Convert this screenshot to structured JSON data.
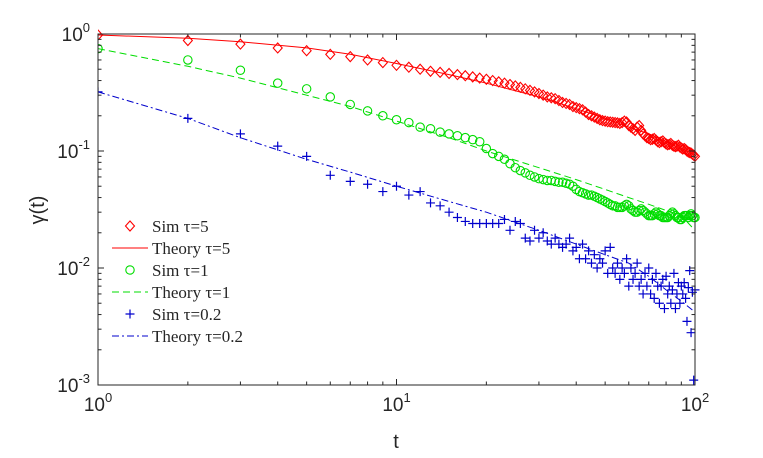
{
  "chart_data": {
    "type": "scatter",
    "xscale": "log",
    "yscale": "log",
    "xlim": [
      1,
      100
    ],
    "ylim": [
      0.001,
      1
    ],
    "xlabel": "t",
    "ylabel": "γ(t)",
    "grid": false,
    "legend_position": "bottom-left",
    "x_ticks": [
      {
        "base": "10",
        "exp": "0",
        "value": 1
      },
      {
        "base": "10",
        "exp": "1",
        "value": 10
      },
      {
        "base": "10",
        "exp": "2",
        "value": 100
      }
    ],
    "y_ticks": [
      {
        "base": "10",
        "exp": "-3",
        "value": 0.001
      },
      {
        "base": "10",
        "exp": "-2",
        "value": 0.01
      },
      {
        "base": "10",
        "exp": "-1",
        "value": 0.1
      },
      {
        "base": "10",
        "exp": "0",
        "value": 1
      }
    ],
    "legend": [
      "Sim τ=5",
      "Theory τ=5",
      "Sim τ=1",
      "Theory τ=1",
      "Sim τ=0.2",
      "Theory τ=0.2"
    ],
    "series": [
      {
        "name": "Sim τ=5",
        "kind": "markers",
        "marker": "diamond",
        "color": "#ff0000",
        "x": [
          1,
          2,
          3,
          4,
          5,
          6,
          7,
          8,
          9,
          10,
          11,
          12,
          13,
          14,
          15,
          16,
          17,
          18,
          19,
          20,
          21,
          22,
          23,
          24,
          25,
          26,
          27,
          28,
          29,
          30,
          31,
          32,
          33,
          34,
          35,
          36,
          37,
          38,
          39,
          40,
          41,
          42,
          43,
          44,
          45,
          46,
          47,
          48,
          49,
          50,
          51,
          52,
          53,
          54,
          55,
          56,
          57,
          58,
          59,
          60,
          61,
          62,
          63,
          64,
          65,
          66,
          67,
          68,
          69,
          70,
          71,
          72,
          73,
          74,
          75,
          76,
          77,
          78,
          79,
          80,
          81,
          82,
          83,
          84,
          85,
          86,
          87,
          88,
          89,
          90,
          91,
          92,
          93,
          94,
          95,
          96,
          97,
          98,
          99,
          100
        ],
        "y": [
          0.98,
          0.88,
          0.82,
          0.76,
          0.72,
          0.67,
          0.64,
          0.6,
          0.57,
          0.54,
          0.52,
          0.5,
          0.48,
          0.47,
          0.46,
          0.45,
          0.44,
          0.43,
          0.42,
          0.41,
          0.4,
          0.39,
          0.38,
          0.37,
          0.36,
          0.35,
          0.34,
          0.33,
          0.32,
          0.31,
          0.3,
          0.29,
          0.285,
          0.28,
          0.27,
          0.26,
          0.255,
          0.25,
          0.24,
          0.235,
          0.23,
          0.225,
          0.215,
          0.205,
          0.2,
          0.195,
          0.19,
          0.185,
          0.182,
          0.18,
          0.178,
          0.177,
          0.176,
          0.175,
          0.174,
          0.172,
          0.175,
          0.18,
          0.177,
          0.165,
          0.16,
          0.155,
          0.15,
          0.16,
          0.165,
          0.15,
          0.14,
          0.135,
          0.13,
          0.128,
          0.125,
          0.126,
          0.128,
          0.124,
          0.12,
          0.118,
          0.12,
          0.122,
          0.118,
          0.115,
          0.113,
          0.114,
          0.116,
          0.112,
          0.11,
          0.109,
          0.11,
          0.112,
          0.108,
          0.106,
          0.104,
          0.105,
          0.103,
          0.1,
          0.098,
          0.097,
          0.096,
          0.094,
          0.092,
          0.09
        ]
      },
      {
        "name": "Theory τ=5",
        "kind": "line",
        "dash": "solid",
        "color": "#ff0000",
        "x": [
          1,
          2,
          3,
          5,
          7,
          10,
          15,
          20,
          30,
          40,
          50,
          60,
          70,
          80,
          90,
          100
        ],
        "y": [
          0.98,
          0.92,
          0.86,
          0.76,
          0.67,
          0.56,
          0.45,
          0.38,
          0.29,
          0.23,
          0.19,
          0.16,
          0.14,
          0.12,
          0.105,
          0.092
        ]
      },
      {
        "name": "Sim τ=1",
        "kind": "markers",
        "marker": "circle",
        "color": "#00dd00",
        "x": [
          1,
          2,
          3,
          4,
          5,
          6,
          7,
          8,
          9,
          10,
          11,
          12,
          13,
          14,
          15,
          16,
          17,
          18,
          19,
          20,
          21,
          22,
          23,
          24,
          25,
          26,
          27,
          28,
          29,
          30,
          31,
          32,
          33,
          34,
          35,
          36,
          37,
          38,
          39,
          40,
          41,
          42,
          43,
          44,
          45,
          46,
          47,
          48,
          49,
          50,
          51,
          52,
          53,
          54,
          55,
          56,
          57,
          58,
          59,
          60,
          61,
          62,
          63,
          64,
          65,
          66,
          67,
          68,
          69,
          70,
          71,
          72,
          73,
          74,
          75,
          76,
          77,
          78,
          79,
          80,
          81,
          82,
          83,
          84,
          85,
          86,
          87,
          88,
          89,
          90,
          91,
          92,
          93,
          94,
          95,
          96,
          97,
          98,
          99,
          100
        ],
        "y": [
          0.75,
          0.6,
          0.49,
          0.38,
          0.34,
          0.29,
          0.25,
          0.22,
          0.2,
          0.185,
          0.175,
          0.16,
          0.155,
          0.145,
          0.14,
          0.135,
          0.13,
          0.125,
          0.12,
          0.105,
          0.095,
          0.09,
          0.085,
          0.078,
          0.072,
          0.068,
          0.065,
          0.062,
          0.06,
          0.058,
          0.057,
          0.056,
          0.056,
          0.055,
          0.054,
          0.054,
          0.053,
          0.052,
          0.05,
          0.047,
          0.045,
          0.044,
          0.043,
          0.042,
          0.042,
          0.041,
          0.04,
          0.039,
          0.038,
          0.037,
          0.036,
          0.035,
          0.034,
          0.034,
          0.033,
          0.033,
          0.033,
          0.034,
          0.035,
          0.034,
          0.032,
          0.031,
          0.03,
          0.03,
          0.031,
          0.032,
          0.031,
          0.03,
          0.029,
          0.028,
          0.028,
          0.028,
          0.029,
          0.03,
          0.029,
          0.028,
          0.028,
          0.027,
          0.027,
          0.027,
          0.027,
          0.028,
          0.029,
          0.03,
          0.029,
          0.028,
          0.027,
          0.027,
          0.026,
          0.026,
          0.027,
          0.028,
          0.028,
          0.028,
          0.027,
          0.028,
          0.029,
          0.028,
          0.027,
          0.027
        ]
      },
      {
        "name": "Theory τ=1",
        "kind": "line",
        "dash": "dashed",
        "color": "#00dd00",
        "x": [
          1,
          2,
          3,
          5,
          7,
          10,
          15,
          20,
          30,
          40,
          50,
          60,
          70,
          80,
          90,
          100
        ],
        "y": [
          0.75,
          0.53,
          0.42,
          0.3,
          0.24,
          0.18,
          0.13,
          0.1,
          0.072,
          0.057,
          0.047,
          0.04,
          0.035,
          0.031,
          0.028,
          0.021
        ]
      },
      {
        "name": "Sim τ=0.2",
        "kind": "markers",
        "marker": "plus",
        "color": "#0000cc",
        "x": [
          1,
          2,
          3,
          4,
          5,
          6,
          7,
          8,
          9,
          10,
          11,
          12,
          13,
          14,
          15,
          16,
          17,
          18,
          19,
          20,
          21,
          22,
          23,
          24,
          25,
          26,
          27,
          28,
          29,
          30,
          31,
          32,
          33,
          34,
          35,
          36,
          37,
          38,
          39,
          40,
          41,
          42,
          43,
          44,
          45,
          46,
          47,
          48,
          49,
          50,
          51,
          52,
          53,
          54,
          55,
          56,
          57,
          58,
          59,
          60,
          61,
          62,
          63,
          64,
          65,
          66,
          67,
          68,
          69,
          70,
          71,
          72,
          73,
          74,
          75,
          76,
          77,
          78,
          79,
          80,
          81,
          82,
          83,
          84,
          85,
          86,
          87,
          88,
          89,
          90,
          91,
          92,
          93,
          94,
          95,
          96,
          97,
          98,
          99,
          100
        ],
        "y": [
          0.32,
          0.19,
          0.14,
          0.11,
          0.09,
          0.062,
          0.055,
          0.052,
          0.045,
          0.05,
          0.042,
          0.045,
          0.036,
          0.034,
          0.03,
          0.027,
          0.025,
          0.024,
          0.024,
          0.024,
          0.024,
          0.024,
          0.026,
          0.021,
          0.025,
          0.024,
          0.018,
          0.017,
          0.021,
          0.018,
          0.02,
          0.017,
          0.016,
          0.018,
          0.016,
          0.015,
          0.016,
          0.018,
          0.014,
          0.015,
          0.012,
          0.016,
          0.012,
          0.014,
          0.011,
          0.013,
          0.01,
          0.012,
          0.011,
          0.014,
          0.009,
          0.015,
          0.01,
          0.009,
          0.011,
          0.008,
          0.01,
          0.009,
          0.012,
          0.007,
          0.01,
          0.008,
          0.009,
          0.011,
          0.007,
          0.008,
          0.006,
          0.009,
          0.007,
          0.01,
          0.006,
          0.008,
          0.0055,
          0.009,
          0.007,
          0.005,
          0.007,
          0.008,
          0.0045,
          0.0085,
          0.006,
          0.007,
          0.005,
          0.0065,
          0.009,
          0.0045,
          0.006,
          0.0075,
          0.005,
          0.007,
          0.006,
          0.0075,
          0.0055,
          0.0035,
          0.0068,
          0.0095,
          0.0028,
          0.0062,
          0.0011,
          0.0065
        ]
      },
      {
        "name": "Theory τ=0.2",
        "kind": "line",
        "dash": "dashdot",
        "color": "#0000cc",
        "x": [
          1,
          2,
          3,
          5,
          7,
          10,
          15,
          20,
          30,
          40,
          50,
          60,
          70,
          80,
          90,
          100
        ],
        "y": [
          0.32,
          0.19,
          0.13,
          0.085,
          0.066,
          0.05,
          0.037,
          0.03,
          0.021,
          0.016,
          0.013,
          0.011,
          0.0085,
          0.0065,
          0.0052,
          0.0042
        ]
      }
    ]
  }
}
